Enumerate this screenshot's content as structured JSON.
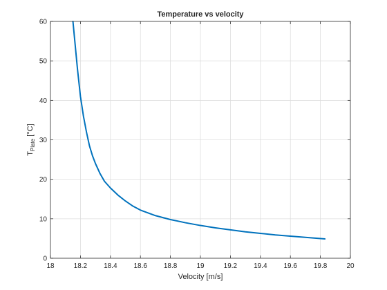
{
  "chart_data": {
    "type": "line",
    "title": "Temperature vs velocity",
    "xlabel": "Velocity [m/s]",
    "ylabel": {
      "main": "T",
      "subscript": "Plate",
      "suffix": " [°C]"
    },
    "xlim": [
      18,
      20
    ],
    "ylim": [
      0,
      60
    ],
    "xticks": [
      18,
      18.2,
      18.4,
      18.6,
      18.8,
      19,
      19.2,
      19.4,
      19.6,
      19.8,
      20
    ],
    "xtick_labels": [
      "18",
      "18.2",
      "18.4",
      "18.6",
      "18.8",
      "19",
      "19.2",
      "19.4",
      "19.6",
      "19.8",
      "20"
    ],
    "yticks": [
      0,
      10,
      20,
      30,
      40,
      50,
      60
    ],
    "ytick_labels": [
      "0",
      "10",
      "20",
      "30",
      "40",
      "50",
      "60"
    ],
    "grid": true,
    "line_color": "#0072BD",
    "series": [
      {
        "x": [
          18.15,
          18.16,
          18.17,
          18.18,
          18.19,
          18.2,
          18.22,
          18.24,
          18.26,
          18.28,
          18.3,
          18.33,
          18.36,
          18.4,
          18.45,
          18.5,
          18.55,
          18.6,
          18.7,
          18.8,
          18.9,
          19.0,
          19.1,
          19.2,
          19.3,
          19.4,
          19.5,
          19.6,
          19.7,
          19.83
        ],
        "y": [
          60,
          56,
          52,
          48,
          44.5,
          41,
          36,
          32,
          28.5,
          26,
          24,
          21.5,
          19.5,
          17.8,
          16.0,
          14.5,
          13.2,
          12.2,
          10.8,
          9.8,
          9.0,
          8.3,
          7.7,
          7.2,
          6.7,
          6.3,
          5.9,
          5.6,
          5.3,
          4.9
        ]
      }
    ]
  }
}
